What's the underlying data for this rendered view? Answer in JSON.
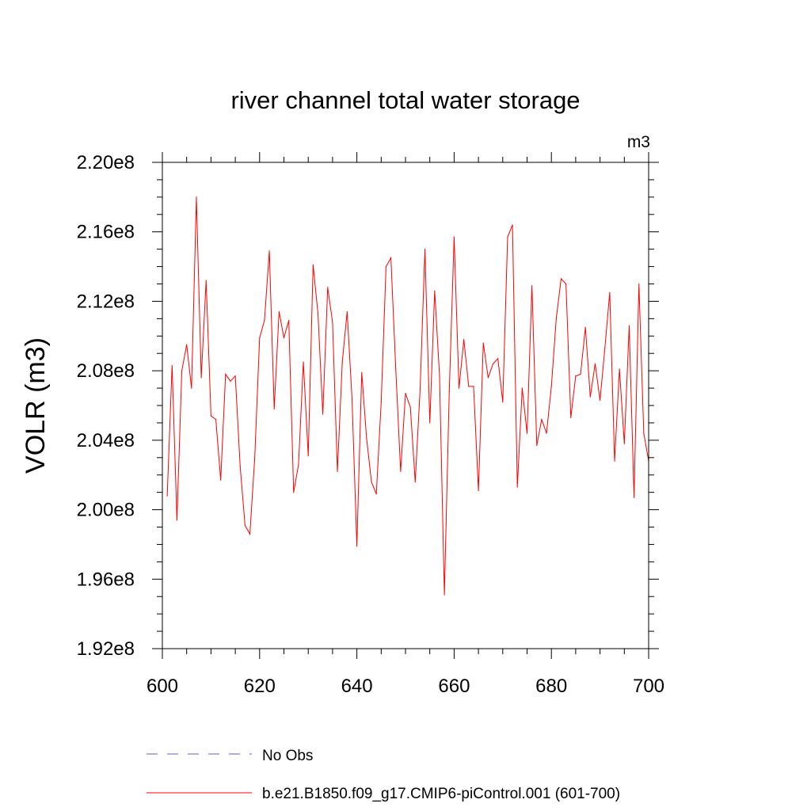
{
  "chart_data": {
    "type": "line",
    "title": "river channel total water storage",
    "units_label": "m3",
    "ylabel": "VOLR  (m3)",
    "xlabel": "",
    "xlim": [
      600,
      700
    ],
    "ylim": [
      192000000.0,
      220000000.0
    ],
    "x_ticks": [
      {
        "value": 600,
        "label": "600"
      },
      {
        "value": 620,
        "label": "620"
      },
      {
        "value": 640,
        "label": "640"
      },
      {
        "value": 660,
        "label": "660"
      },
      {
        "value": 680,
        "label": "680"
      },
      {
        "value": 700,
        "label": "700"
      }
    ],
    "y_ticks": [
      {
        "value": 192000000.0,
        "label": "1.92e8"
      },
      {
        "value": 196000000.0,
        "label": "1.96e8"
      },
      {
        "value": 200000000.0,
        "label": "2.00e8"
      },
      {
        "value": 204000000.0,
        "label": "2.04e8"
      },
      {
        "value": 208000000.0,
        "label": "2.08e8"
      },
      {
        "value": 212000000.0,
        "label": "2.12e8"
      },
      {
        "value": 216000000.0,
        "label": "2.16e8"
      },
      {
        "value": 220000000.0,
        "label": "2.20e8"
      }
    ],
    "grid": false,
    "legend_position": "bottom",
    "legend": [
      {
        "label": "No Obs",
        "color": "#6a5acd",
        "style": "dashed"
      },
      {
        "label": "b.e21.B1850.f09_g17.CMIP6-piControl.001 (601-700)",
        "color": "#ff0000",
        "style": "solid"
      }
    ],
    "series": [
      {
        "name": "b.e21.B1850.f09_g17.CMIP6-piControl.001 (601-700)",
        "color": "#ff0000",
        "x": [
          601,
          602,
          603,
          604,
          605,
          606,
          607,
          608,
          609,
          610,
          611,
          612,
          613,
          614,
          615,
          616,
          617,
          618,
          619,
          620,
          621,
          622,
          623,
          624,
          625,
          626,
          627,
          628,
          629,
          630,
          631,
          632,
          633,
          634,
          635,
          636,
          637,
          638,
          639,
          640,
          641,
          642,
          643,
          644,
          645,
          646,
          647,
          648,
          649,
          650,
          651,
          652,
          653,
          654,
          655,
          656,
          657,
          658,
          659,
          660,
          661,
          662,
          663,
          664,
          665,
          666,
          667,
          668,
          669,
          670,
          671,
          672,
          673,
          674,
          675,
          676,
          677,
          678,
          679,
          680,
          681,
          682,
          683,
          684,
          685,
          686,
          687,
          688,
          689,
          690,
          691,
          692,
          693,
          694,
          695,
          696,
          697,
          698,
          699,
          700
        ],
        "values": [
          200800000.0,
          208300000.0,
          199400000.0,
          208000000.0,
          209500000.0,
          207000000.0,
          218000000.0,
          207600000.0,
          213200000.0,
          205400000.0,
          205200000.0,
          201700000.0,
          207800000.0,
          207400000.0,
          207700000.0,
          202500000.0,
          199100000.0,
          198600000.0,
          203000000.0,
          209900000.0,
          210900000.0,
          214900000.0,
          205800000.0,
          211400000.0,
          209900000.0,
          210900000.0,
          201000000.0,
          202600000.0,
          208500000.0,
          203100000.0,
          214100000.0,
          211300000.0,
          205500000.0,
          212800000.0,
          210800000.0,
          202200000.0,
          208500000.0,
          211400000.0,
          206400000.0,
          197900000.0,
          207900000.0,
          204100000.0,
          201600000.0,
          200900000.0,
          206200000.0,
          214000000.0,
          214500000.0,
          208100000.0,
          202200000.0,
          206700000.0,
          205900000.0,
          201600000.0,
          206900000.0,
          215000000.0,
          205000000.0,
          212600000.0,
          207700000.0,
          195100000.0,
          206800000.0,
          215700000.0,
          207000000.0,
          209800000.0,
          207100000.0,
          207100000.0,
          201100000.0,
          209600000.0,
          207600000.0,
          208400000.0,
          208700000.0,
          206200000.0,
          215700000.0,
          216400000.0,
          201300000.0,
          207000000.0,
          204400000.0,
          212900000.0,
          203700000.0,
          205200000.0,
          204400000.0,
          207100000.0,
          211000000.0,
          213300000.0,
          213000000.0,
          205300000.0,
          207700000.0,
          207800000.0,
          210500000.0,
          206500000.0,
          208400000.0,
          206300000.0,
          209300000.0,
          212500000.0,
          202800000.0,
          208100000.0,
          203800000.0,
          210600000.0,
          200700000.0,
          213000000.0,
          204400000.0,
          202800000.0
        ]
      }
    ]
  }
}
